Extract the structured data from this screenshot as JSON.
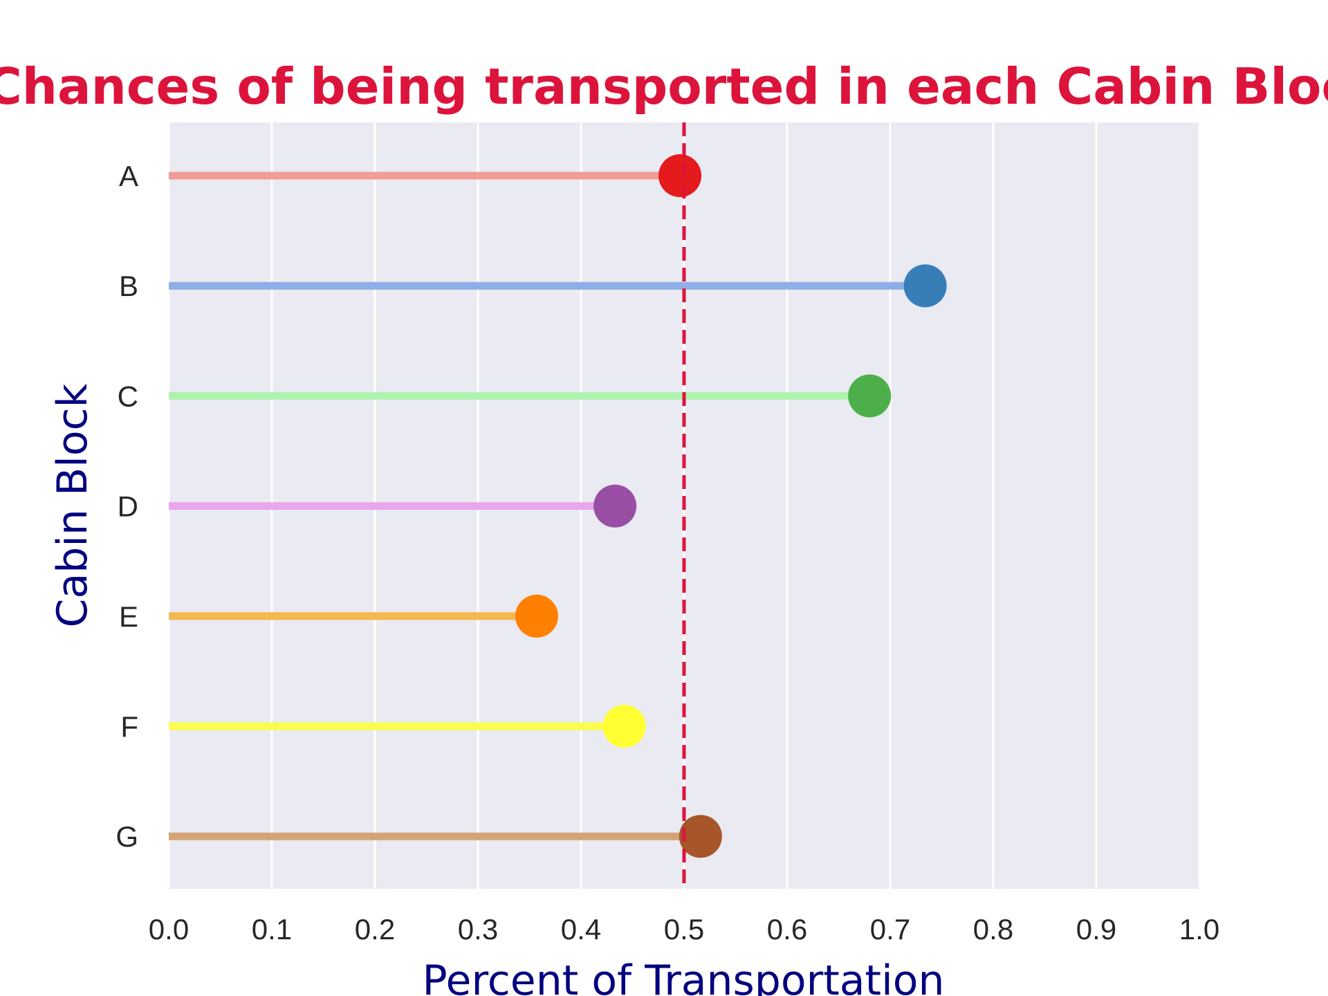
{
  "chart_data": {
    "type": "lollipop",
    "title": "Chances of being transported in each Cabin Block",
    "xlabel": "Percent of Transportation",
    "ylabel": "Cabin Block",
    "categories": [
      "A",
      "B",
      "C",
      "D",
      "E",
      "F",
      "G"
    ],
    "values": [
      0.496,
      0.734,
      0.68,
      0.433,
      0.357,
      0.442,
      0.516
    ],
    "xlim": [
      0.0,
      1.0
    ],
    "xticks": [
      "0.0",
      "0.1",
      "0.2",
      "0.3",
      "0.4",
      "0.5",
      "0.6",
      "0.7",
      "0.8",
      "0.9",
      "1.0"
    ],
    "reference_line": {
      "x": 0.5,
      "style": "dashed",
      "color": "#dc143c"
    },
    "grid": true,
    "background": "#eaeaf2",
    "title_color": "#dc143c",
    "label_color": "#000080",
    "stem_colors": [
      "#f19c97",
      "#8eaee8",
      "#aef3ae",
      "#eaa6ea",
      "#f5b64e",
      "#fcfc4a",
      "#d5a475"
    ],
    "dot_colors": [
      "#e41a1c",
      "#377eb8",
      "#4daf4a",
      "#984ea3",
      "#ff7f00",
      "#ffff33",
      "#a65628"
    ]
  }
}
